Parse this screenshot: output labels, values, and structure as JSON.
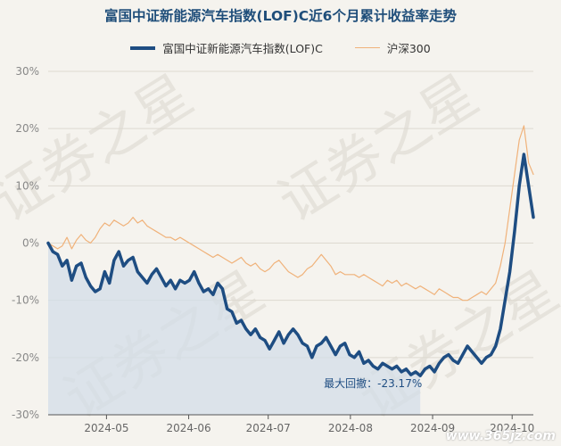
{
  "chart_data": {
    "type": "line",
    "title": "富国中证新能源汽车指数(LOF)C近6个月累计收益率走势",
    "y_unit": "%",
    "ylim": [
      -30,
      30
    ],
    "yticks": [
      30,
      20,
      10,
      0,
      -10,
      -20,
      -30
    ],
    "ytick_labels": [
      "30%",
      "20%",
      "10%",
      "0%",
      "-10%",
      "-20%",
      "-30%"
    ],
    "xticks": [
      "2024-05",
      "2024-06",
      "2024-07",
      "2024-08",
      "2024-09",
      "2024-10"
    ],
    "x_range": [
      "2024-04-09",
      "2024-10-09"
    ],
    "grid": "horizontal",
    "legend_position": "top-center",
    "series": [
      {
        "name": "富国中证新能源汽车指数(LOF)C",
        "color": "#1e4d82",
        "values": [
          0.0,
          -1.5,
          -2.0,
          -4.0,
          -3.0,
          -6.5,
          -4.0,
          -3.5,
          -6.0,
          -7.5,
          -8.5,
          -8.0,
          -5.0,
          -7.0,
          -3.0,
          -1.5,
          -4.0,
          -3.0,
          -2.5,
          -5.0,
          -6.0,
          -7.0,
          -5.5,
          -4.5,
          -6.0,
          -7.5,
          -6.5,
          -8.0,
          -6.5,
          -7.0,
          -6.5,
          -5.0,
          -7.0,
          -8.5,
          -8.0,
          -9.0,
          -7.0,
          -8.0,
          -11.5,
          -12.0,
          -14.0,
          -13.5,
          -15.0,
          -16.0,
          -15.0,
          -16.5,
          -17.0,
          -18.5,
          -17.0,
          -15.5,
          -17.5,
          -16.0,
          -15.0,
          -16.0,
          -17.5,
          -18.0,
          -20.0,
          -18.0,
          -17.5,
          -16.5,
          -18.0,
          -19.5,
          -18.0,
          -17.5,
          -19.5,
          -20.0,
          -19.0,
          -21.0,
          -20.5,
          -21.5,
          -22.0,
          -21.0,
          -21.5,
          -22.0,
          -21.5,
          -22.5,
          -22.0,
          -23.0,
          -22.5,
          -23.17,
          -22.0,
          -21.5,
          -22.5,
          -21.0,
          -20.0,
          -19.5,
          -20.5,
          -21.0,
          -19.5,
          -18.0,
          -19.0,
          -20.0,
          -21.0,
          -20.0,
          -19.5,
          -18.0,
          -15.0,
          -10.0,
          -5.0,
          2.0,
          10.0,
          15.5,
          10.0,
          4.5
        ]
      },
      {
        "name": "沪深300",
        "color": "#f0b27a",
        "values": [
          0.0,
          -0.5,
          -1.0,
          -0.5,
          1.0,
          -1.0,
          0.5,
          1.5,
          0.5,
          0.0,
          1.0,
          2.5,
          3.5,
          3.0,
          4.0,
          3.5,
          3.0,
          3.5,
          4.5,
          3.5,
          4.0,
          3.0,
          2.5,
          2.0,
          1.5,
          1.0,
          1.0,
          0.5,
          1.0,
          0.5,
          0.0,
          -0.5,
          -1.0,
          -1.5,
          -2.0,
          -2.5,
          -2.0,
          -2.5,
          -3.0,
          -3.5,
          -3.0,
          -2.5,
          -3.5,
          -4.0,
          -3.5,
          -4.5,
          -5.0,
          -4.5,
          -3.5,
          -3.0,
          -4.0,
          -5.0,
          -5.5,
          -6.0,
          -5.5,
          -4.5,
          -4.0,
          -3.0,
          -2.0,
          -3.0,
          -4.0,
          -5.5,
          -5.0,
          -5.5,
          -5.5,
          -5.5,
          -6.0,
          -5.5,
          -6.0,
          -6.5,
          -7.0,
          -7.5,
          -6.5,
          -7.0,
          -6.5,
          -7.5,
          -7.0,
          -7.5,
          -8.0,
          -7.5,
          -8.0,
          -8.5,
          -9.0,
          -8.0,
          -8.5,
          -9.0,
          -9.5,
          -9.5,
          -10.0,
          -10.0,
          -9.5,
          -9.0,
          -8.5,
          -9.0,
          -8.0,
          -7.0,
          -4.0,
          0.0,
          6.0,
          12.0,
          18.0,
          20.5,
          14.0,
          12.0
        ]
      }
    ],
    "annotation": {
      "label": "最大回撤：",
      "value": "-23.17%",
      "shaded_series": "富国中证新能源汽车指数(LOF)C",
      "drawdown_fill": "#d3dde8"
    },
    "watermark": "证券之星",
    "footer_text": "www.365jz.com"
  }
}
